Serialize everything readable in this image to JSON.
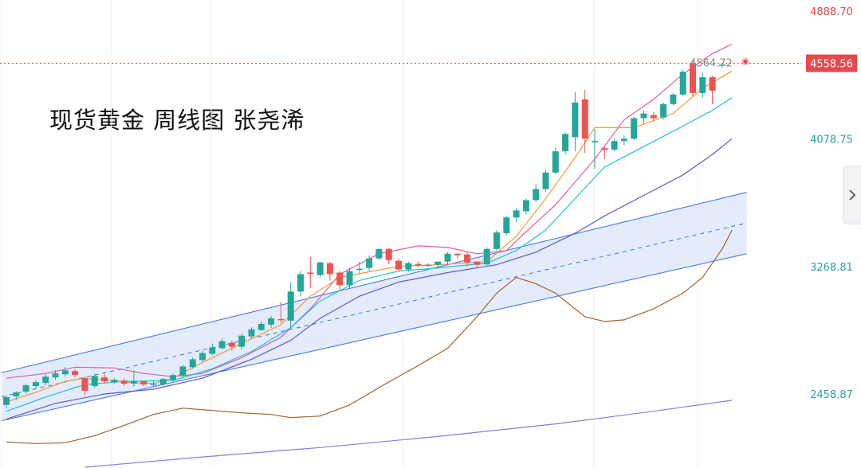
{
  "title": "现货黄金 周线图 张尧浠",
  "chart_data": {
    "type": "candlestick",
    "price_axis": {
      "ticks": [
        {
          "value": 4888.7,
          "label": "4888.70"
        },
        {
          "value": 4078.75,
          "label": "4078.75"
        },
        {
          "value": 3268.81,
          "label": "3268.81"
        },
        {
          "value": 2458.87,
          "label": "2458.87"
        }
      ],
      "range": [
        1990,
        4920
      ]
    },
    "last_price": {
      "value": 4558.56,
      "label": "4558.56"
    },
    "high_marker": {
      "value": 4564.72,
      "label": "4564.72"
    },
    "colors": {
      "up": "#26a69a",
      "down": "#ef5350",
      "ma5": "#f39c3c",
      "ma10": "#1bc2d6",
      "ma20": "#5a5ad0",
      "ma_long": "#a0622d",
      "ma_longest": "#8a7ae0",
      "boll_upper": "#e05aa8",
      "channel_line": "#4a78e8",
      "channel_fill": "#dbe5fb",
      "last_price": "#e5484d",
      "tick_green": "#26a69a",
      "tick_red": "#e5484d"
    },
    "candles": [
      [
        2390,
        2440,
        2370,
        2450
      ],
      [
        2445,
        2470,
        2420,
        2480
      ],
      [
        2475,
        2515,
        2460,
        2525
      ],
      [
        2510,
        2535,
        2490,
        2548
      ],
      [
        2530,
        2570,
        2515,
        2585
      ],
      [
        2565,
        2590,
        2550,
        2610
      ],
      [
        2585,
        2610,
        2570,
        2630
      ],
      [
        2605,
        2580,
        2565,
        2618
      ],
      [
        2560,
        2480,
        2450,
        2570
      ],
      [
        2510,
        2575,
        2500,
        2590
      ],
      [
        2565,
        2540,
        2525,
        2590
      ],
      [
        2535,
        2550,
        2525,
        2560
      ],
      [
        2545,
        2525,
        2510,
        2560
      ],
      [
        2525,
        2540,
        2505,
        2610
      ],
      [
        2540,
        2520,
        2510,
        2545
      ],
      [
        2518,
        2525,
        2505,
        2540
      ],
      [
        2520,
        2555,
        2510,
        2560
      ],
      [
        2550,
        2580,
        2540,
        2590
      ],
      [
        2575,
        2635,
        2565,
        2645
      ],
      [
        2630,
        2680,
        2620,
        2692
      ],
      [
        2675,
        2720,
        2665,
        2735
      ],
      [
        2715,
        2755,
        2705,
        2780
      ],
      [
        2750,
        2795,
        2745,
        2812
      ],
      [
        2785,
        2760,
        2735,
        2800
      ],
      [
        2760,
        2830,
        2740,
        2845
      ],
      [
        2825,
        2870,
        2815,
        2882
      ],
      [
        2865,
        2905,
        2860,
        2922
      ],
      [
        2900,
        2940,
        2880,
        2955
      ],
      [
        2935,
        2930,
        2910,
        3045
      ],
      [
        2925,
        3110,
        2880,
        3170
      ],
      [
        3110,
        3220,
        3080,
        3240
      ],
      [
        3230,
        3225,
        3130,
        3330
      ],
      [
        3215,
        3295,
        3200,
        3300
      ],
      [
        3290,
        3220,
        3180,
        3300
      ],
      [
        3230,
        3150,
        3110,
        3240
      ],
      [
        3150,
        3240,
        3130,
        3260
      ],
      [
        3250,
        3255,
        3220,
        3300
      ],
      [
        3260,
        3320,
        3240,
        3340
      ],
      [
        3320,
        3380,
        3310,
        3382
      ],
      [
        3380,
        3310,
        3285,
        3388
      ],
      [
        3305,
        3250,
        3235,
        3320
      ],
      [
        3250,
        3290,
        3238,
        3300
      ],
      [
        3285,
        3275,
        3262,
        3300
      ],
      [
        3275,
        3280,
        3268,
        3290
      ],
      [
        3280,
        3300,
        3260,
        3300
      ],
      [
        3300,
        3350,
        3280,
        3360
      ],
      [
        3350,
        3340,
        3320,
        3355
      ],
      [
        3345,
        3295,
        3270,
        3360
      ],
      [
        3300,
        3280,
        3265,
        3300
      ],
      [
        3282,
        3380,
        3270,
        3390
      ],
      [
        3380,
        3485,
        3370,
        3500
      ],
      [
        3480,
        3580,
        3470,
        3590
      ],
      [
        3580,
        3625,
        3550,
        3640
      ],
      [
        3620,
        3690,
        3600,
        3700
      ],
      [
        3690,
        3760,
        3680,
        3790
      ],
      [
        3760,
        3865,
        3745,
        3880
      ],
      [
        3865,
        4000,
        3855,
        4025
      ],
      [
        4000,
        4110,
        3980,
        4120
      ],
      [
        4090,
        4310,
        4000,
        4375
      ],
      [
        4330,
        4080,
        3990,
        4390
      ],
      [
        4060,
        4065,
        3890,
        4140
      ],
      [
        4020,
        4010,
        3950,
        4030
      ],
      [
        4010,
        4065,
        4000,
        4080
      ],
      [
        4065,
        4080,
        4040,
        4100
      ],
      [
        4080,
        4210,
        4070,
        4220
      ],
      [
        4210,
        4240,
        4180,
        4260
      ],
      [
        4230,
        4210,
        4190,
        4250
      ],
      [
        4215,
        4300,
        4200,
        4310
      ],
      [
        4300,
        4360,
        4290,
        4370
      ],
      [
        4360,
        4505,
        4350,
        4520
      ],
      [
        4560,
        4370,
        4350,
        4575
      ],
      [
        4370,
        4470,
        4340,
        4500
      ],
      [
        4470,
        4385,
        4300,
        4480
      ],
      [
        4545,
        4550,
        4530,
        4560
      ]
    ],
    "indicators": {
      "ma5": [
        [
          0,
          2410
        ],
        [
          3,
          2470
        ],
        [
          6,
          2540
        ],
        [
          8,
          2560
        ],
        [
          10,
          2550
        ],
        [
          13,
          2530
        ],
        [
          15,
          2527
        ],
        [
          17,
          2560
        ],
        [
          20,
          2660
        ],
        [
          24,
          2780
        ],
        [
          28,
          2900
        ],
        [
          31,
          3080
        ],
        [
          34,
          3200
        ],
        [
          40,
          3270
        ],
        [
          44,
          3280
        ],
        [
          49,
          3300
        ],
        [
          52,
          3460
        ],
        [
          55,
          3700
        ],
        [
          58,
          3960
        ],
        [
          60,
          4150
        ],
        [
          64,
          4150
        ],
        [
          68,
          4240
        ],
        [
          71,
          4400
        ],
        [
          74,
          4510
        ]
      ],
      "ma10": [
        [
          0,
          2350
        ],
        [
          4,
          2440
        ],
        [
          8,
          2520
        ],
        [
          12,
          2540
        ],
        [
          17,
          2545
        ],
        [
          21,
          2620
        ],
        [
          25,
          2730
        ],
        [
          29,
          2880
        ],
        [
          32,
          3050
        ],
        [
          36,
          3180
        ],
        [
          40,
          3240
        ],
        [
          44,
          3260
        ],
        [
          49,
          3290
        ],
        [
          52,
          3370
        ],
        [
          55,
          3500
        ],
        [
          58,
          3700
        ],
        [
          61,
          3900
        ],
        [
          65,
          4030
        ],
        [
          69,
          4160
        ],
        [
          72,
          4260
        ],
        [
          74,
          4340
        ]
      ],
      "ma20": [
        [
          0,
          2300
        ],
        [
          5,
          2400
        ],
        [
          10,
          2460
        ],
        [
          15,
          2490
        ],
        [
          20,
          2560
        ],
        [
          25,
          2680
        ],
        [
          29,
          2800
        ],
        [
          32,
          2940
        ],
        [
          36,
          3080
        ],
        [
          40,
          3170
        ],
        [
          45,
          3230
        ],
        [
          50,
          3280
        ],
        [
          54,
          3360
        ],
        [
          58,
          3480
        ],
        [
          61,
          3590
        ],
        [
          65,
          3720
        ],
        [
          69,
          3850
        ],
        [
          72,
          3980
        ],
        [
          74,
          4080
        ]
      ],
      "ma_long": [
        [
          0,
          2155
        ],
        [
          3,
          2145
        ],
        [
          6,
          2150
        ],
        [
          9,
          2195
        ],
        [
          12,
          2260
        ],
        [
          15,
          2330
        ],
        [
          18,
          2370
        ],
        [
          21,
          2355
        ],
        [
          24,
          2340
        ],
        [
          27,
          2330
        ],
        [
          29,
          2310
        ],
        [
          32,
          2320
        ],
        [
          35,
          2390
        ],
        [
          38,
          2500
        ],
        [
          42,
          2640
        ],
        [
          45,
          2750
        ],
        [
          48,
          2950
        ],
        [
          50,
          3100
        ],
        [
          52,
          3200
        ],
        [
          54,
          3160
        ],
        [
          56,
          3100
        ],
        [
          59,
          2950
        ],
        [
          61,
          2920
        ],
        [
          63,
          2930
        ],
        [
          66,
          3000
        ],
        [
          69,
          3100
        ],
        [
          71,
          3200
        ],
        [
          73,
          3380
        ],
        [
          74,
          3500
        ]
      ],
      "ma_longest": [
        [
          8,
          1995
        ],
        [
          20,
          2060
        ],
        [
          32,
          2120
        ],
        [
          44,
          2190
        ],
        [
          56,
          2270
        ],
        [
          66,
          2350
        ],
        [
          74,
          2420
        ]
      ],
      "boll_upper": [
        [
          0,
          2560
        ],
        [
          4,
          2590
        ],
        [
          7,
          2630
        ],
        [
          11,
          2625
        ],
        [
          14,
          2590
        ],
        [
          17,
          2570
        ],
        [
          20,
          2590
        ],
        [
          24,
          2690
        ],
        [
          28,
          2820
        ],
        [
          31,
          3000
        ],
        [
          34,
          3220
        ],
        [
          38,
          3350
        ],
        [
          42,
          3400
        ],
        [
          45,
          3390
        ],
        [
          48,
          3350
        ],
        [
          51,
          3370
        ],
        [
          53,
          3490
        ],
        [
          56,
          3660
        ],
        [
          60,
          3950
        ],
        [
          63,
          4200
        ],
        [
          66,
          4330
        ],
        [
          69,
          4490
        ],
        [
          72,
          4620
        ],
        [
          74,
          4680
        ]
      ]
    },
    "channel": {
      "upper": [
        [
          -0.5,
          2595
        ],
        [
          75.5,
          3740
        ]
      ],
      "lower": [
        [
          -0.5,
          2290
        ],
        [
          75.5,
          3350
        ]
      ],
      "mid": [
        [
          -0.5,
          2442
        ],
        [
          75.5,
          3545
        ]
      ]
    },
    "grid": "vertical-light",
    "legend": "none"
  }
}
